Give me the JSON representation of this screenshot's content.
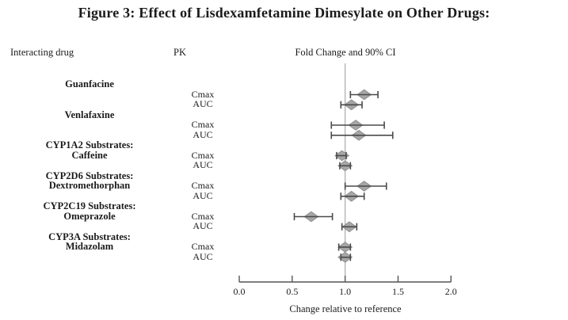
{
  "figure": {
    "title": "Figure 3: Effect of Lisdexamfetamine Dimesylate on Other Drugs:",
    "columns": {
      "drug": "Interacting drug",
      "pk": "PK",
      "fold": "Fold Change and 90% CI"
    }
  },
  "chart_data": {
    "type": "forest",
    "xlabel": "Change relative to reference",
    "xlim": [
      0.0,
      2.0
    ],
    "xticks": [
      0.0,
      0.5,
      1.0,
      1.5,
      2.0
    ],
    "xtick_labels": [
      "0.0",
      "0.5",
      "1.0",
      "1.5",
      "2.0"
    ],
    "reference_line": 1.0,
    "ci_level": "90% CI",
    "groups": [
      {
        "drug": [
          "Guanfacine"
        ],
        "rows": [
          {
            "pk": "Cmax",
            "value": 1.18,
            "lo": 1.05,
            "hi": 1.31
          },
          {
            "pk": "AUC",
            "value": 1.06,
            "lo": 0.96,
            "hi": 1.16
          }
        ]
      },
      {
        "drug": [
          "Venlafaxine"
        ],
        "rows": [
          {
            "pk": "Cmax",
            "value": 1.1,
            "lo": 0.87,
            "hi": 1.37
          },
          {
            "pk": "AUC",
            "value": 1.13,
            "lo": 0.87,
            "hi": 1.45
          }
        ]
      },
      {
        "drug": [
          "CYP1A2 Substrates:",
          "Caffeine"
        ],
        "rows": [
          {
            "pk": "Cmax",
            "value": 0.97,
            "lo": 0.92,
            "hi": 1.01
          },
          {
            "pk": "AUC",
            "value": 1.0,
            "lo": 0.95,
            "hi": 1.05
          }
        ]
      },
      {
        "drug": [
          "CYP2D6 Substrates:",
          "Dextromethorphan"
        ],
        "rows": [
          {
            "pk": "Cmax",
            "value": 1.18,
            "lo": 1.0,
            "hi": 1.39
          },
          {
            "pk": "AUC",
            "value": 1.06,
            "lo": 0.96,
            "hi": 1.18
          }
        ]
      },
      {
        "drug": [
          "CYP2C19 Substrates:",
          "Omeprazole"
        ],
        "rows": [
          {
            "pk": "Cmax",
            "value": 0.68,
            "lo": 0.52,
            "hi": 0.88
          },
          {
            "pk": "AUC",
            "value": 1.04,
            "lo": 0.97,
            "hi": 1.11
          }
        ]
      },
      {
        "drug": [
          "CYP3A Substrates:",
          "Midazolam"
        ],
        "rows": [
          {
            "pk": "Cmax",
            "value": 1.0,
            "lo": 0.94,
            "hi": 1.05
          },
          {
            "pk": "AUC",
            "value": 1.0,
            "lo": 0.96,
            "hi": 1.05
          }
        ]
      }
    ],
    "colors": {
      "diamond_fill": "#a6a6a6",
      "diamond_stroke": "#8f8f8f",
      "error_bar": "#4a4a4a",
      "reference_line": "#b0b0b0",
      "axis": "#555555",
      "text": "#1b1b1b"
    }
  }
}
